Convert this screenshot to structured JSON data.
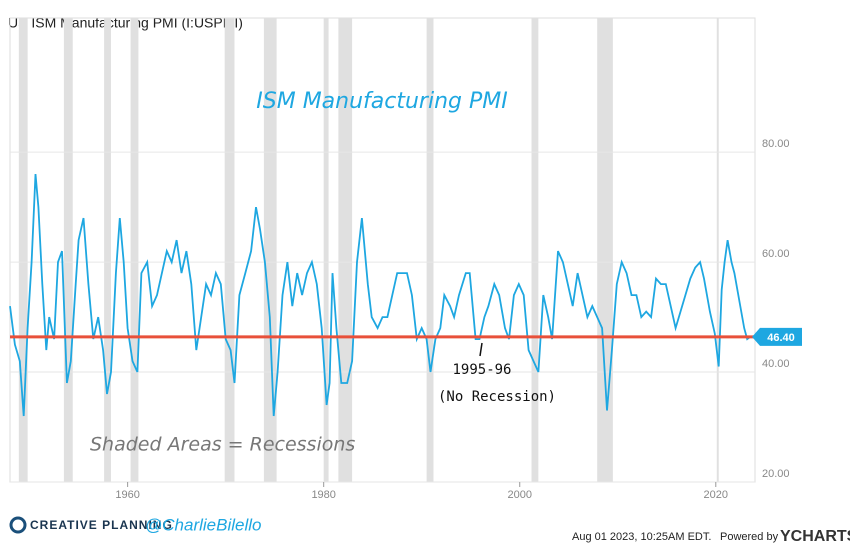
{
  "chart_data": {
    "type": "line",
    "title": "US ISM Manufacturing PMI (I:USPMI)",
    "annotations": {
      "chart_label": "ISM Manufacturing PMI",
      "period": "1995-96",
      "note": "(No Recession)",
      "shading": "Shaded Areas = Recessions"
    },
    "color": "#1ea7e1",
    "last_line_color": "#e8503a",
    "last_value": 46.4,
    "last_value_label": "46.40",
    "xlim": [
      1948,
      2024
    ],
    "xticks": [
      1960,
      1980,
      2000,
      2020
    ],
    "ylim": [
      20,
      104.4
    ],
    "yticks": [
      {
        "value": 20,
        "label": "20.00"
      },
      {
        "value": 40,
        "label": "40.00"
      },
      {
        "value": 60,
        "label": "60.00"
      },
      {
        "value": 80,
        "label": "80.00"
      }
    ],
    "grid": true,
    "recessions": [
      [
        1948.9,
        1949.8
      ],
      [
        1953.5,
        1954.4
      ],
      [
        1957.6,
        1958.3
      ],
      [
        1960.3,
        1961.1
      ],
      [
        1969.9,
        1970.9
      ],
      [
        1973.9,
        1975.2
      ],
      [
        1980.0,
        1980.5
      ],
      [
        1981.5,
        1982.9
      ],
      [
        1990.5,
        1991.2
      ],
      [
        2001.2,
        2001.9
      ],
      [
        2007.9,
        2009.5
      ],
      [
        2020.1,
        2020.3
      ]
    ],
    "x": [
      1948.0,
      1948.5,
      1949.0,
      1949.4,
      1949.8,
      1950.2,
      1950.6,
      1950.9,
      1951.3,
      1951.7,
      1952.0,
      1952.5,
      1952.9,
      1953.3,
      1953.8,
      1954.2,
      1954.7,
      1955.0,
      1955.5,
      1956.0,
      1956.5,
      1957.0,
      1957.5,
      1957.9,
      1958.3,
      1958.8,
      1959.2,
      1959.6,
      1960.0,
      1960.5,
      1961.0,
      1961.4,
      1962.0,
      1962.5,
      1963.0,
      1963.5,
      1964.0,
      1964.5,
      1965.0,
      1965.5,
      1966.0,
      1966.5,
      1967.0,
      1967.5,
      1968.0,
      1968.5,
      1969.0,
      1969.5,
      1970.0,
      1970.5,
      1970.9,
      1971.4,
      1972.0,
      1972.6,
      1973.1,
      1973.5,
      1974.0,
      1974.5,
      1974.9,
      1975.3,
      1975.8,
      1976.3,
      1976.8,
      1977.3,
      1977.8,
      1978.3,
      1978.8,
      1979.3,
      1979.8,
      1980.3,
      1980.6,
      1980.9,
      1981.3,
      1981.8,
      1982.4,
      1982.9,
      1983.4,
      1983.9,
      1984.5,
      1984.9,
      1985.5,
      1986.0,
      1986.5,
      1987.0,
      1987.5,
      1988.0,
      1988.5,
      1989.0,
      1989.5,
      1990.0,
      1990.5,
      1990.9,
      1991.4,
      1991.9,
      1992.3,
      1992.9,
      1993.3,
      1993.8,
      1994.5,
      1994.9,
      1995.5,
      1995.9,
      1996.4,
      1996.8,
      1997.4,
      1997.9,
      1998.5,
      1998.9,
      1999.4,
      1999.9,
      2000.4,
      2000.9,
      2001.4,
      2001.9,
      2002.4,
      2002.9,
      2003.3,
      2003.9,
      2004.4,
      2004.9,
      2005.4,
      2005.9,
      2006.4,
      2006.9,
      2007.4,
      2007.9,
      2008.4,
      2008.9,
      2009.4,
      2009.9,
      2010.4,
      2010.9,
      2011.4,
      2011.9,
      2012.4,
      2012.9,
      2013.4,
      2013.9,
      2014.4,
      2014.9,
      2015.4,
      2015.9,
      2016.4,
      2016.9,
      2017.4,
      2017.9,
      2018.4,
      2018.8,
      2019.4,
      2019.9,
      2020.3,
      2020.6,
      2020.9,
      2021.2,
      2021.6,
      2021.9,
      2022.4,
      2022.9,
      2023.2,
      2023.5
    ],
    "values": [
      52,
      45,
      42,
      32,
      48,
      60,
      76,
      70,
      56,
      44,
      50,
      46,
      60,
      62,
      38,
      42,
      56,
      64,
      68,
      56,
      46,
      50,
      44,
      36,
      40,
      58,
      68,
      60,
      48,
      42,
      40,
      58,
      60,
      52,
      54,
      58,
      62,
      60,
      64,
      58,
      62,
      56,
      44,
      50,
      56,
      54,
      58,
      56,
      46,
      44,
      38,
      54,
      58,
      62,
      70,
      66,
      60,
      50,
      32,
      40,
      54,
      60,
      52,
      58,
      54,
      58,
      60,
      56,
      48,
      34,
      38,
      58,
      48,
      38,
      38,
      42,
      60,
      68,
      56,
      50,
      48,
      50,
      50,
      54,
      58,
      58,
      58,
      54,
      46,
      48,
      46,
      40,
      46,
      48,
      54,
      52,
      50,
      54,
      58,
      58,
      46,
      46,
      50,
      52,
      56,
      54,
      48,
      46,
      54,
      56,
      54,
      44,
      42,
      40,
      54,
      50,
      46,
      62,
      60,
      56,
      52,
      58,
      54,
      50,
      52,
      50,
      48,
      33,
      44,
      56,
      60,
      58,
      54,
      54,
      50,
      51,
      50,
      57,
      56,
      56,
      52,
      48,
      51,
      54,
      57,
      59,
      60,
      57,
      51,
      47,
      41,
      55,
      60,
      64,
      60,
      58,
      53,
      48,
      46,
      46.4
    ]
  },
  "footer": {
    "brand": "CREATIVE PLANNING",
    "handle": "@CharlieBilello",
    "timestamp": "Aug 01 2023, 10:25AM EDT.",
    "powered": "Powered by",
    "provider": "YCHARTS"
  }
}
